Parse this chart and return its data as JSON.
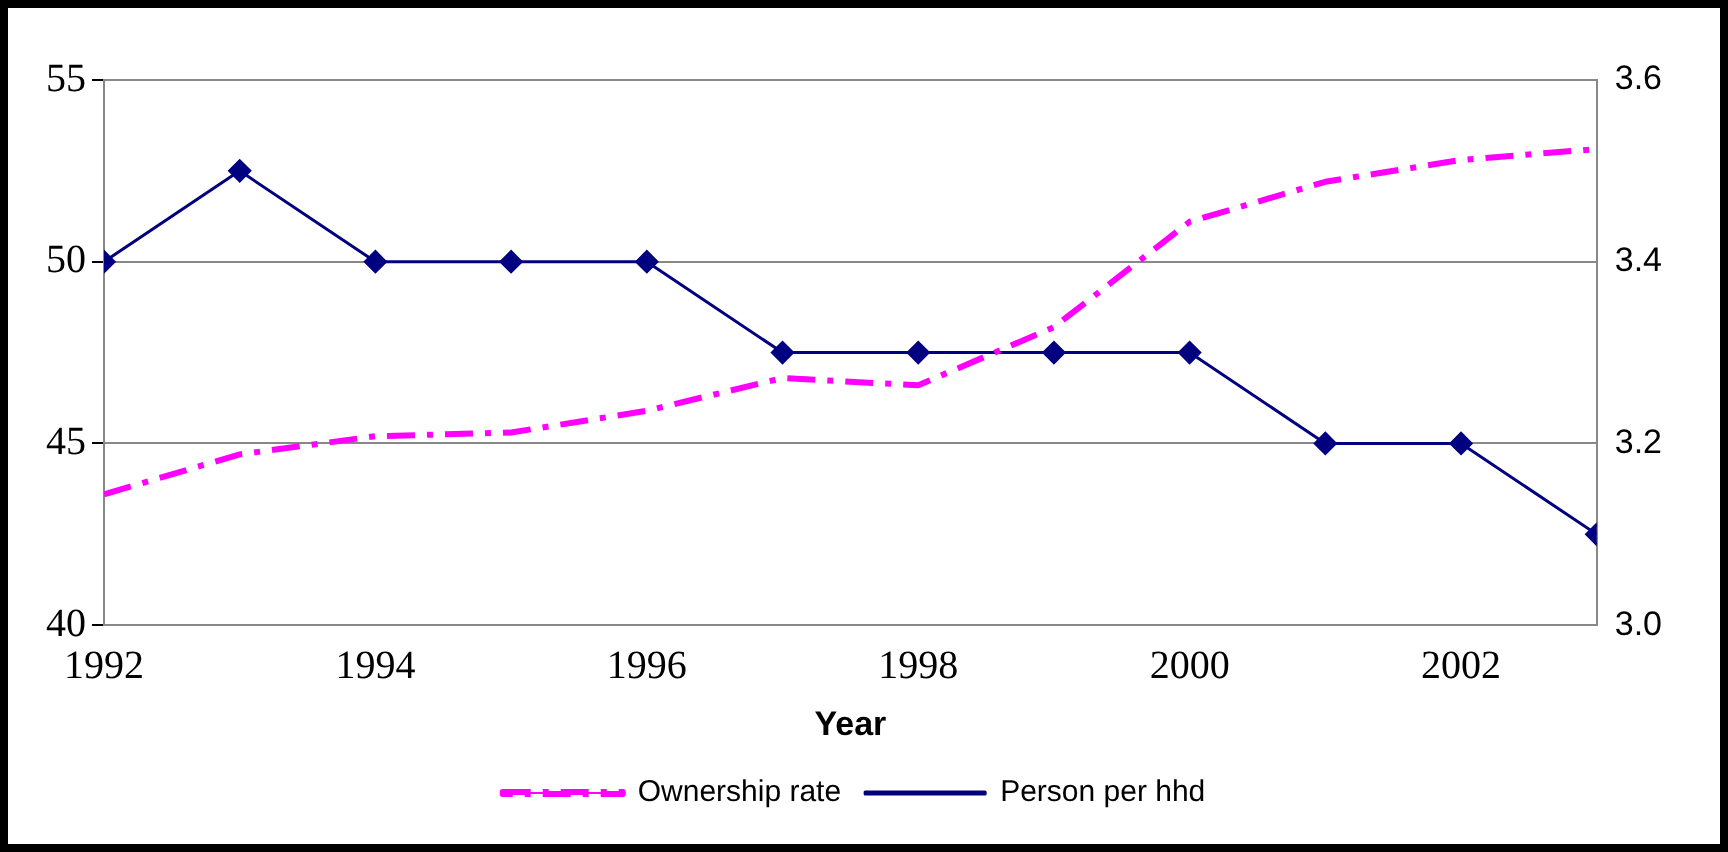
{
  "chart_data": {
    "type": "line",
    "xlabel": "Year",
    "x": [
      1992,
      1993,
      1994,
      1995,
      1996,
      1997,
      1998,
      1999,
      2000,
      2001,
      2002,
      2003
    ],
    "xlim": [
      1992,
      2003
    ],
    "xticks": [
      1992,
      1994,
      1996,
      1998,
      2000,
      2002
    ],
    "ylim": [
      40,
      55
    ],
    "yticks": [
      40,
      45,
      50,
      55
    ],
    "y2lim": [
      3.0,
      3.6
    ],
    "y2ticks": [
      {
        "value": 3.0,
        "label": "3.0"
      },
      {
        "value": 3.2,
        "label": "3.2"
      },
      {
        "value": 3.4,
        "label": "3.4"
      },
      {
        "value": 3.6,
        "label": "3.6"
      }
    ],
    "grid": "y",
    "legend": "bottom",
    "series": [
      {
        "name": "Ownership rate",
        "color": "#ff00ff",
        "line_style": "dashed",
        "marker": "none",
        "values": [
          43.6,
          44.7,
          45.2,
          45.3,
          45.9,
          46.8,
          46.6,
          48.2,
          51.1,
          52.2,
          52.8,
          53.1
        ]
      },
      {
        "name": "Person per hhd",
        "color": "#000080",
        "axis": "y2",
        "line_style": "solid",
        "marker": "diamond",
        "values": [
          3.4,
          3.5,
          3.4,
          3.4,
          3.4,
          3.3,
          3.3,
          3.3,
          3.3,
          3.2,
          3.2,
          3.1
        ]
      }
    ]
  }
}
